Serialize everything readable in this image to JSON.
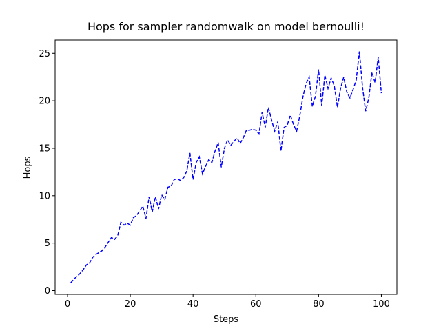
{
  "chart_data": {
    "type": "line",
    "title": "Hops for sampler randomwalk on model bernoulli!",
    "xlabel": "Steps",
    "ylabel": "Hops",
    "x": [
      1,
      2,
      3,
      4,
      5,
      6,
      7,
      8,
      9,
      10,
      11,
      12,
      13,
      14,
      15,
      16,
      17,
      18,
      19,
      20,
      21,
      22,
      23,
      24,
      25,
      26,
      27,
      28,
      29,
      30,
      31,
      32,
      33,
      34,
      35,
      36,
      37,
      38,
      39,
      40,
      41,
      42,
      43,
      44,
      45,
      46,
      47,
      48,
      49,
      50,
      51,
      52,
      53,
      54,
      55,
      56,
      57,
      58,
      59,
      60,
      61,
      62,
      63,
      64,
      65,
      66,
      67,
      68,
      69,
      70,
      71,
      72,
      73,
      74,
      75,
      76,
      77,
      78,
      79,
      80,
      81,
      82,
      83,
      84,
      85,
      86,
      87,
      88,
      89,
      90,
      91,
      92,
      93,
      94,
      95,
      96,
      97,
      98,
      99,
      100
    ],
    "series": [
      {
        "name": "Hops",
        "color": "blue",
        "linestyle": "dashed",
        "values": [
          0.8,
          1.2,
          1.5,
          1.8,
          2.2,
          2.7,
          2.9,
          3.5,
          3.8,
          4.0,
          4.2,
          4.6,
          5.1,
          5.6,
          5.4,
          5.8,
          7.2,
          6.9,
          7.1,
          6.9,
          7.7,
          7.9,
          8.4,
          8.9,
          7.6,
          9.9,
          8.3,
          9.9,
          8.6,
          10.1,
          9.6,
          10.9,
          11.0,
          11.7,
          11.8,
          11.6,
          11.9,
          12.6,
          14.5,
          11.7,
          13.5,
          14.1,
          12.3,
          13.1,
          13.8,
          13.5,
          14.7,
          15.6,
          13.0,
          15.0,
          15.9,
          15.3,
          15.7,
          16.1,
          15.5,
          16.1,
          16.9,
          16.9,
          17.0,
          16.9,
          16.5,
          18.8,
          17.2,
          19.3,
          18.0,
          16.8,
          17.8,
          14.7,
          17.2,
          17.4,
          18.5,
          17.5,
          16.8,
          18.4,
          20.4,
          21.8,
          22.5,
          19.4,
          20.5,
          23.3,
          19.5,
          22.7,
          21.3,
          22.4,
          21.6,
          19.3,
          21.3,
          22.5,
          20.9,
          20.3,
          21.2,
          22.2,
          25.2,
          21.4,
          18.9,
          20.3,
          23.0,
          21.9,
          24.6,
          20.8
        ]
      }
    ],
    "xlim": [
      -3.95,
      104.95
    ],
    "ylim": [
      -0.4,
      26.4
    ],
    "xticks": [
      0,
      20,
      40,
      60,
      80,
      100
    ],
    "yticks": [
      0,
      5,
      10,
      15,
      20,
      25
    ]
  }
}
